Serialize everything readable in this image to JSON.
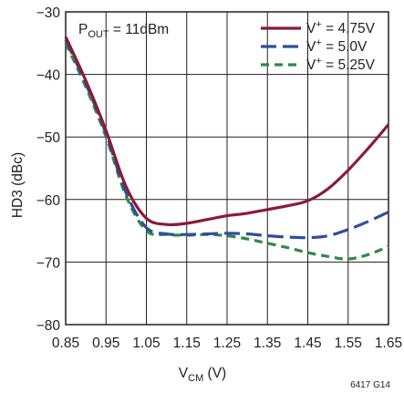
{
  "chart_data": {
    "type": "line",
    "title": "",
    "xlabel": {
      "main": "V",
      "sub": "CM",
      "rest": " (V)"
    },
    "ylabel": "HD3 (dBc)",
    "xlim": [
      0.85,
      1.65
    ],
    "ylim": [
      -80,
      -30
    ],
    "x_ticks": [
      0.85,
      0.95,
      1.05,
      1.15,
      1.25,
      1.35,
      1.45,
      1.55,
      1.65
    ],
    "x_tick_labels": [
      "0.85",
      "0.95",
      "1.05",
      "1.15",
      "1.25",
      "1.35",
      "1.45",
      "1.55",
      "1.65"
    ],
    "y_ticks": [
      -30,
      -40,
      -50,
      -60,
      -70,
      -80
    ],
    "y_tick_labels": [
      "−30",
      "−40",
      "−50",
      "−60",
      "−70",
      "−80"
    ],
    "grid": true,
    "legend_position": "top-right",
    "annotation": {
      "main": "P",
      "sub": "OUT",
      "rest": " = 11dBm"
    },
    "series": [
      {
        "name": {
          "main": "V",
          "sup": "+",
          "rest": " = 4.75V"
        },
        "color": "#8b1a3a",
        "dash": "solid",
        "x": [
          0.85,
          0.9,
          0.95,
          1.0,
          1.05,
          1.1,
          1.15,
          1.2,
          1.25,
          1.3,
          1.35,
          1.4,
          1.45,
          1.5,
          1.55,
          1.6,
          1.65
        ],
        "y": [
          -34,
          -41,
          -49,
          -58,
          -63,
          -64,
          -63.8,
          -63.2,
          -62.6,
          -62.2,
          -61.6,
          -61.0,
          -60.2,
          -58.3,
          -55.3,
          -51.8,
          -48
        ]
      },
      {
        "name": {
          "main": "V",
          "sup": "+",
          "rest": " = 5.0V"
        },
        "color": "#2e4f9e",
        "dash": "long",
        "x": [
          0.85,
          0.9,
          0.95,
          1.0,
          1.05,
          1.1,
          1.15,
          1.2,
          1.25,
          1.3,
          1.35,
          1.4,
          1.45,
          1.5,
          1.55,
          1.6,
          1.65
        ],
        "y": [
          -34.5,
          -41.5,
          -49.5,
          -59,
          -64.5,
          -65.5,
          -65.6,
          -65.5,
          -65.4,
          -65.5,
          -65.8,
          -66.0,
          -66.1,
          -65.8,
          -64.8,
          -63.5,
          -62
        ]
      },
      {
        "name": {
          "main": "V",
          "sup": "+",
          "rest": " = 5.25V"
        },
        "color": "#2e8b45",
        "dash": "short",
        "x": [
          0.85,
          0.9,
          0.95,
          1.0,
          1.05,
          1.1,
          1.15,
          1.2,
          1.25,
          1.3,
          1.35,
          1.4,
          1.45,
          1.5,
          1.55,
          1.6,
          1.65
        ],
        "y": [
          -35,
          -42,
          -50,
          -59.5,
          -65,
          -65.6,
          -65.7,
          -65.6,
          -65.8,
          -66.3,
          -67.0,
          -67.7,
          -68.5,
          -69.1,
          -69.5,
          -68.8,
          -67.5
        ]
      }
    ],
    "figure_code": "6417 G14"
  }
}
